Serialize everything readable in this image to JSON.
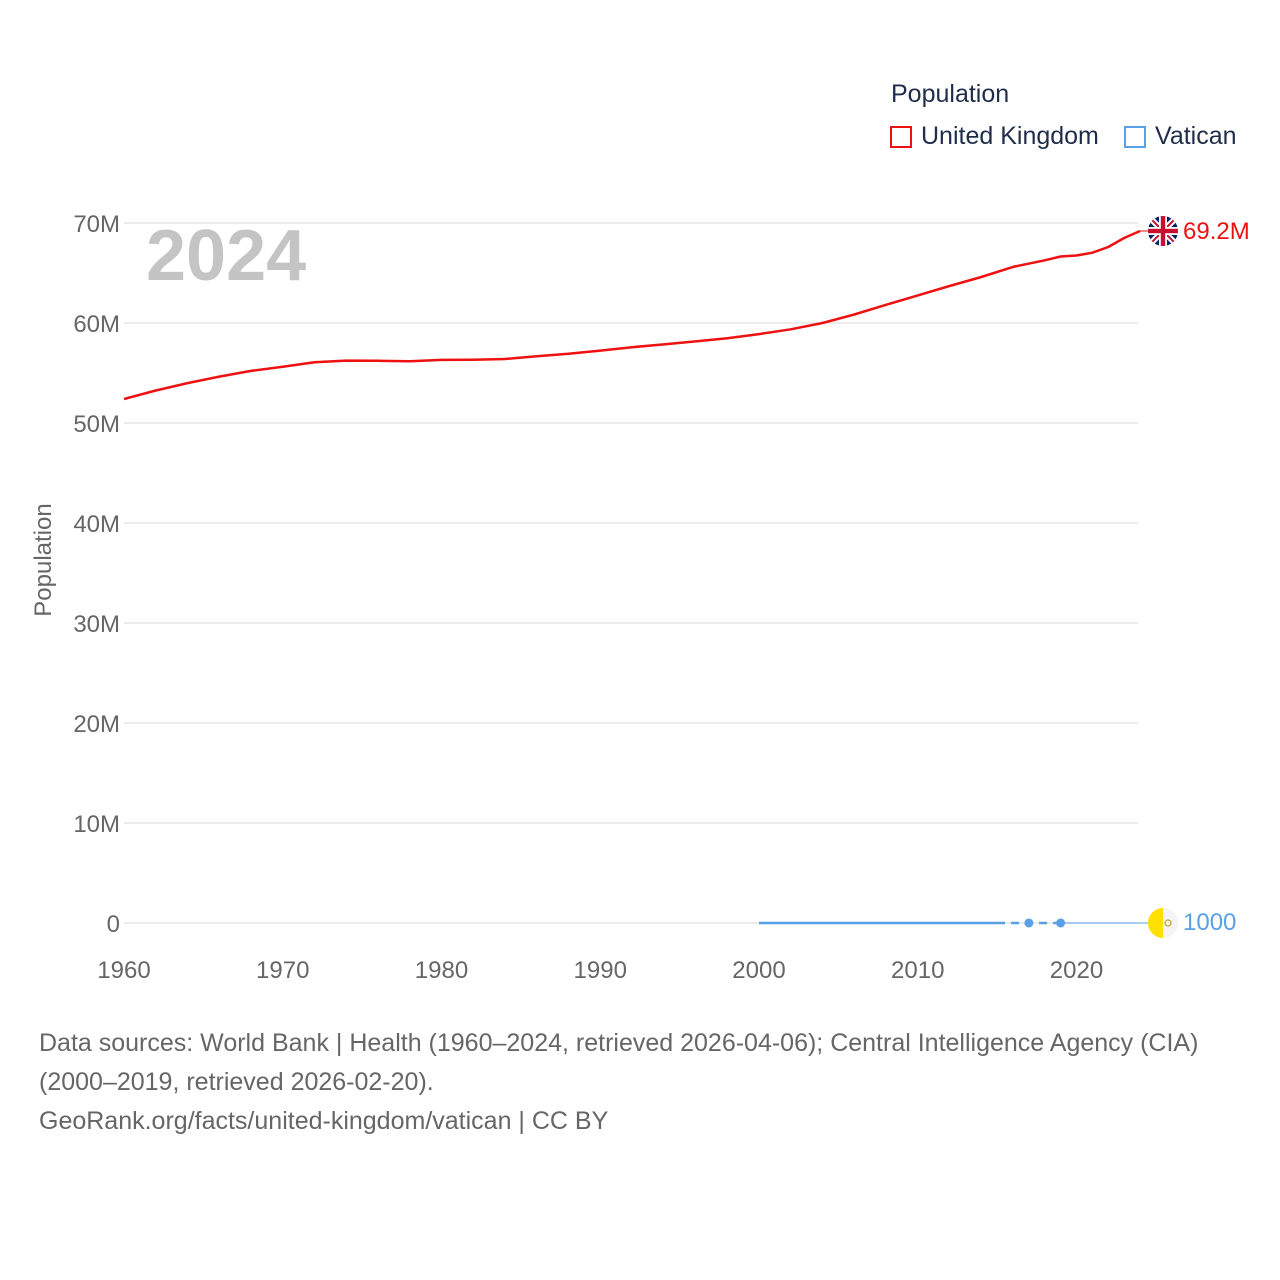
{
  "legend": {
    "title": "Population",
    "items": [
      {
        "label": "United Kingdom",
        "color": "#ee1111"
      },
      {
        "label": "Vatican",
        "color": "#5aa0e6"
      }
    ]
  },
  "sources": {
    "line1": "Data sources: World Bank | Health (1960–2024, retrieved 2026-04-06); Central Intelligence Agency (CIA)",
    "line2": "(2000–2019, retrieved 2026-02-20).",
    "line3": "GeoRank.org/facts/united-kingdom/vatican | CC BY"
  },
  "chart_data": {
    "type": "line",
    "title": "Population",
    "year_label": "2024",
    "xlabel": "",
    "ylabel": "Population",
    "xlim": [
      1960,
      2024
    ],
    "ylim": [
      0,
      70000000
    ],
    "x_ticks": [
      1960,
      1970,
      1980,
      1990,
      2000,
      2010,
      2020
    ],
    "y_ticks": [
      0,
      10000000,
      20000000,
      30000000,
      40000000,
      50000000,
      60000000,
      70000000
    ],
    "y_tick_labels": [
      "0",
      "10M",
      "20M",
      "30M",
      "40M",
      "50M",
      "60M",
      "70M"
    ],
    "grid": true,
    "legend_position": "top-right",
    "series": [
      {
        "name": "United Kingdom",
        "color": "#ee1111",
        "end_label": "69.2M",
        "flag_icon": "uk-flag-icon",
        "points": [
          [
            1960,
            52400000
          ],
          [
            1962,
            53250000
          ],
          [
            1964,
            53990000
          ],
          [
            1966,
            54640000
          ],
          [
            1968,
            55210000
          ],
          [
            1970,
            55630000
          ],
          [
            1972,
            56080000
          ],
          [
            1974,
            56240000
          ],
          [
            1976,
            56220000
          ],
          [
            1978,
            56180000
          ],
          [
            1980,
            56310000
          ],
          [
            1982,
            56320000
          ],
          [
            1984,
            56400000
          ],
          [
            1986,
            56680000
          ],
          [
            1988,
            56920000
          ],
          [
            1990,
            57240000
          ],
          [
            1992,
            57580000
          ],
          [
            1994,
            57860000
          ],
          [
            1996,
            58160000
          ],
          [
            1998,
            58480000
          ],
          [
            2000,
            58890000
          ],
          [
            2002,
            59370000
          ],
          [
            2004,
            60000000
          ],
          [
            2006,
            60850000
          ],
          [
            2008,
            61820000
          ],
          [
            2010,
            62760000
          ],
          [
            2012,
            63700000
          ],
          [
            2014,
            64600000
          ],
          [
            2016,
            65610000
          ],
          [
            2018,
            66270000
          ],
          [
            2019,
            66650000
          ],
          [
            2020,
            66750000
          ],
          [
            2021,
            67030000
          ],
          [
            2022,
            67600000
          ],
          [
            2023,
            68500000
          ],
          [
            2024,
            69200000
          ]
        ]
      },
      {
        "name": "Vatican",
        "color": "#5aa0e6",
        "end_label": "1000",
        "flag_icon": "vatican-flag-icon",
        "solid_points": [
          [
            2000,
            900
          ],
          [
            2015,
            840
          ]
        ],
        "dashed_points": [
          [
            2015,
            840
          ],
          [
            2017,
            1000
          ],
          [
            2019,
            1000
          ]
        ],
        "markers": [
          [
            2017,
            1000
          ],
          [
            2019,
            1000
          ]
        ],
        "projection_points": [
          [
            2019,
            1000
          ],
          [
            2024,
            1000
          ]
        ]
      }
    ]
  }
}
